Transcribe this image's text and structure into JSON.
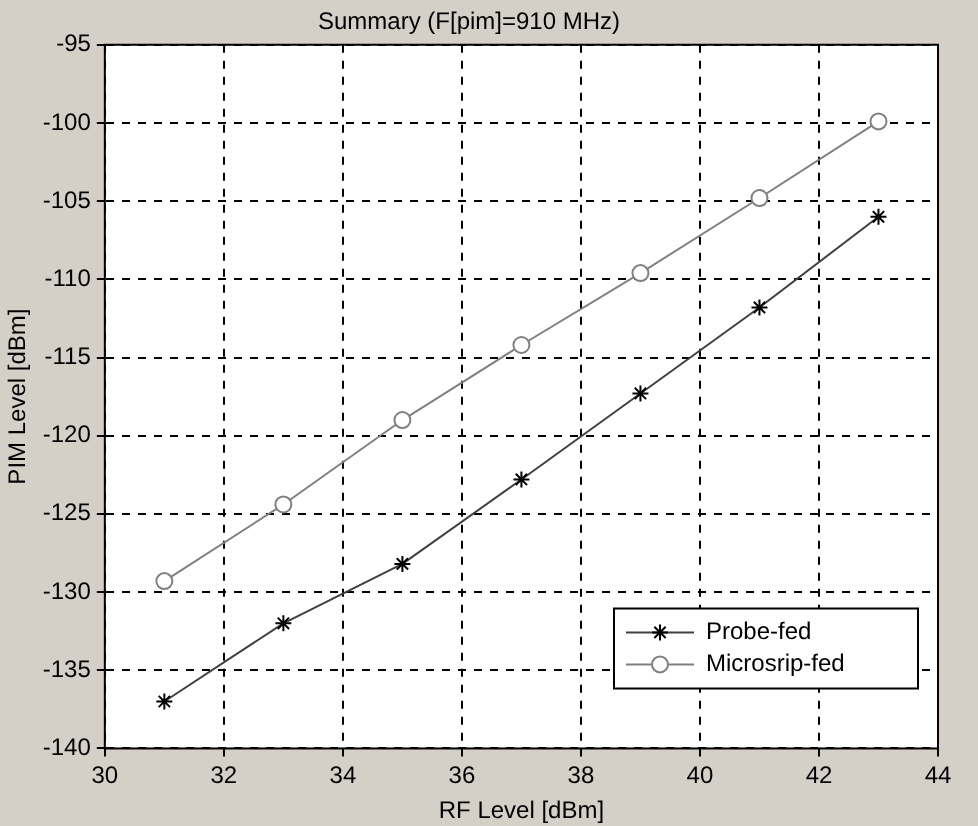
{
  "chart_data": {
    "type": "line",
    "title": "Summary (F[pim]=910 MHz)",
    "xlabel": "RF Level [dBm]",
    "ylabel": "PIM Level [dBm]",
    "x": [
      31,
      33,
      35,
      37,
      39,
      41,
      43
    ],
    "series": [
      {
        "name": "Probe-fed",
        "color": "#404040",
        "marker": "cross",
        "values": [
          -137,
          -132,
          -128.2,
          -122.8,
          -117.3,
          -111.8,
          -106
        ]
      },
      {
        "name": "Microsrip-fed",
        "color": "#808080",
        "marker": "circle",
        "values": [
          -129.3,
          -124.4,
          -119,
          -114.2,
          -109.6,
          -104.8,
          -99.9
        ]
      }
    ],
    "xlim": [
      30,
      44
    ],
    "xticks": [
      30,
      32,
      34,
      36,
      38,
      40,
      42,
      44
    ],
    "ylim": [
      -140,
      -95
    ],
    "yticks": [
      -140,
      -135,
      -130,
      -125,
      -120,
      -115,
      -110,
      -105,
      -100,
      -95
    ],
    "grid": true,
    "legend": "bottom right",
    "line_style": "solid"
  }
}
